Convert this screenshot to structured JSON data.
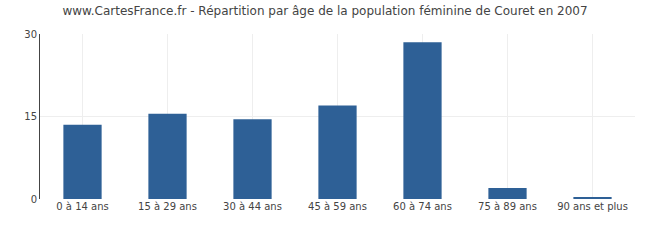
{
  "chart_data": {
    "type": "bar",
    "title": "www.CartesFrance.fr - Répartition par âge de la population féminine de Couret en 2007",
    "categories": [
      "0 à 14 ans",
      "15 à 29 ans",
      "30 à 44 ans",
      "45 à 59 ans",
      "60 à 74 ans",
      "75 à 89 ans",
      "90 ans et plus"
    ],
    "values": [
      13.5,
      15.5,
      14.5,
      17,
      28.5,
      2,
      0.3
    ],
    "color": "#2e6096",
    "ylim": [
      0,
      30
    ],
    "yticks": [
      0,
      15,
      30
    ],
    "grid": true
  }
}
